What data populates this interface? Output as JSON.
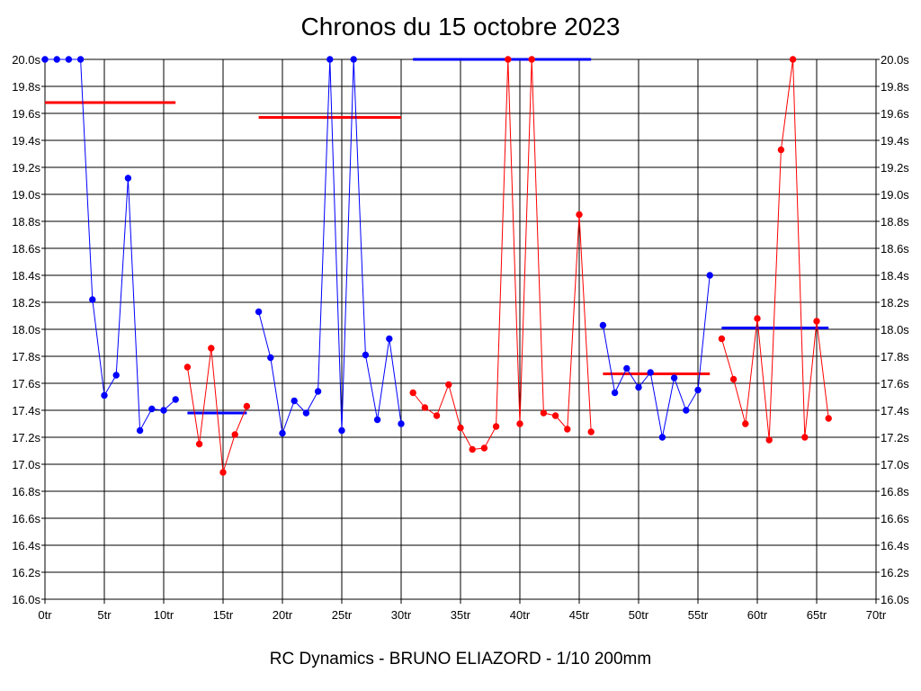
{
  "chart_data": {
    "type": "line",
    "title": "Chronos du 15 octobre 2023",
    "subtitle": "RC Dynamics - BRUNO ELIAZORD - 1/10 200mm",
    "xlim": [
      0,
      70
    ],
    "ylim": [
      16.0,
      20.0
    ],
    "x_ticks": [
      {
        "value": 0,
        "label": "0tr"
      },
      {
        "value": 5,
        "label": "5tr"
      },
      {
        "value": 10,
        "label": "10tr"
      },
      {
        "value": 15,
        "label": "15tr"
      },
      {
        "value": 20,
        "label": "20tr"
      },
      {
        "value": 25,
        "label": "25tr"
      },
      {
        "value": 30,
        "label": "30tr"
      },
      {
        "value": 35,
        "label": "35tr"
      },
      {
        "value": 40,
        "label": "40tr"
      },
      {
        "value": 45,
        "label": "45tr"
      },
      {
        "value": 50,
        "label": "50tr"
      },
      {
        "value": 55,
        "label": "55tr"
      },
      {
        "value": 60,
        "label": "60tr"
      },
      {
        "value": 65,
        "label": "65tr"
      },
      {
        "value": 70,
        "label": "70tr"
      }
    ],
    "y_ticks": [
      {
        "value": 20.0,
        "label": "20.0s"
      },
      {
        "value": 19.8,
        "label": "19.8s"
      },
      {
        "value": 19.6,
        "label": "19.6s"
      },
      {
        "value": 19.4,
        "label": "19.4s"
      },
      {
        "value": 19.2,
        "label": "19.2s"
      },
      {
        "value": 19.0,
        "label": "19.0s"
      },
      {
        "value": 18.8,
        "label": "18.8s"
      },
      {
        "value": 18.6,
        "label": "18.6s"
      },
      {
        "value": 18.4,
        "label": "18.4s"
      },
      {
        "value": 18.2,
        "label": "18.2s"
      },
      {
        "value": 18.0,
        "label": "18.0s"
      },
      {
        "value": 17.8,
        "label": "17.8s"
      },
      {
        "value": 17.6,
        "label": "17.6s"
      },
      {
        "value": 17.4,
        "label": "17.4s"
      },
      {
        "value": 17.2,
        "label": "17.2s"
      },
      {
        "value": 17.0,
        "label": "17.0s"
      },
      {
        "value": 16.8,
        "label": "16.8s"
      },
      {
        "value": 16.6,
        "label": "16.6s"
      },
      {
        "value": 16.4,
        "label": "16.4s"
      },
      {
        "value": 16.2,
        "label": "16.2s"
      },
      {
        "value": 16.0,
        "label": "16.0s"
      }
    ],
    "grid": true,
    "series": [
      {
        "color": "#0000ff",
        "x": [
          0,
          1,
          2,
          3,
          4,
          5,
          6,
          7,
          8,
          9,
          10,
          11
        ],
        "y": [
          20.0,
          20.0,
          20.0,
          20.0,
          18.22,
          17.51,
          17.66,
          19.12,
          17.25,
          17.41,
          17.4,
          17.48
        ]
      },
      {
        "color": "#ff0000",
        "x": [
          12,
          13,
          14,
          15,
          16,
          17
        ],
        "y": [
          17.72,
          17.15,
          17.86,
          16.94,
          17.22,
          17.43
        ]
      },
      {
        "color": "#0000ff",
        "x": [
          18,
          19,
          20,
          21,
          22,
          23,
          24,
          25,
          26,
          27,
          28,
          29,
          30
        ],
        "y": [
          18.13,
          17.79,
          17.23,
          17.47,
          17.38,
          17.54,
          20.0,
          17.25,
          20.0,
          17.81,
          17.33,
          17.93,
          17.3
        ]
      },
      {
        "color": "#ff0000",
        "x": [
          31,
          32,
          33,
          34,
          35,
          36,
          37,
          38,
          39,
          40,
          41,
          42,
          43,
          44,
          45,
          46
        ],
        "y": [
          17.53,
          17.42,
          17.36,
          17.59,
          17.27,
          17.11,
          17.12,
          17.28,
          20.0,
          17.3,
          20.0,
          17.38,
          17.36,
          17.26,
          18.85,
          17.24
        ]
      },
      {
        "color": "#0000ff",
        "x": [
          47,
          48,
          49,
          50,
          51,
          52,
          53,
          54,
          55,
          56
        ],
        "y": [
          18.03,
          17.53,
          17.71,
          17.57,
          17.68,
          17.2,
          17.64,
          17.4,
          17.55,
          18.4
        ]
      },
      {
        "color": "#ff0000",
        "x": [
          57,
          58,
          59,
          60,
          61,
          62,
          63,
          64,
          65,
          66
        ],
        "y": [
          17.93,
          17.63,
          17.3,
          18.08,
          17.18,
          19.33,
          20.0,
          17.2,
          18.06,
          17.34
        ]
      }
    ],
    "averages": [
      {
        "color": "#ff0000",
        "x": [
          0,
          11
        ],
        "y": 19.68
      },
      {
        "color": "#0000ff",
        "x": [
          12,
          17
        ],
        "y": 17.38
      },
      {
        "color": "#ff0000",
        "x": [
          18,
          30
        ],
        "y": 19.57
      },
      {
        "color": "#0000ff",
        "x": [
          31,
          46
        ],
        "y": 20.0
      },
      {
        "color": "#ff0000",
        "x": [
          47,
          56
        ],
        "y": 17.67
      },
      {
        "color": "#0000ff",
        "x": [
          57,
          66
        ],
        "y": 18.01
      }
    ]
  }
}
